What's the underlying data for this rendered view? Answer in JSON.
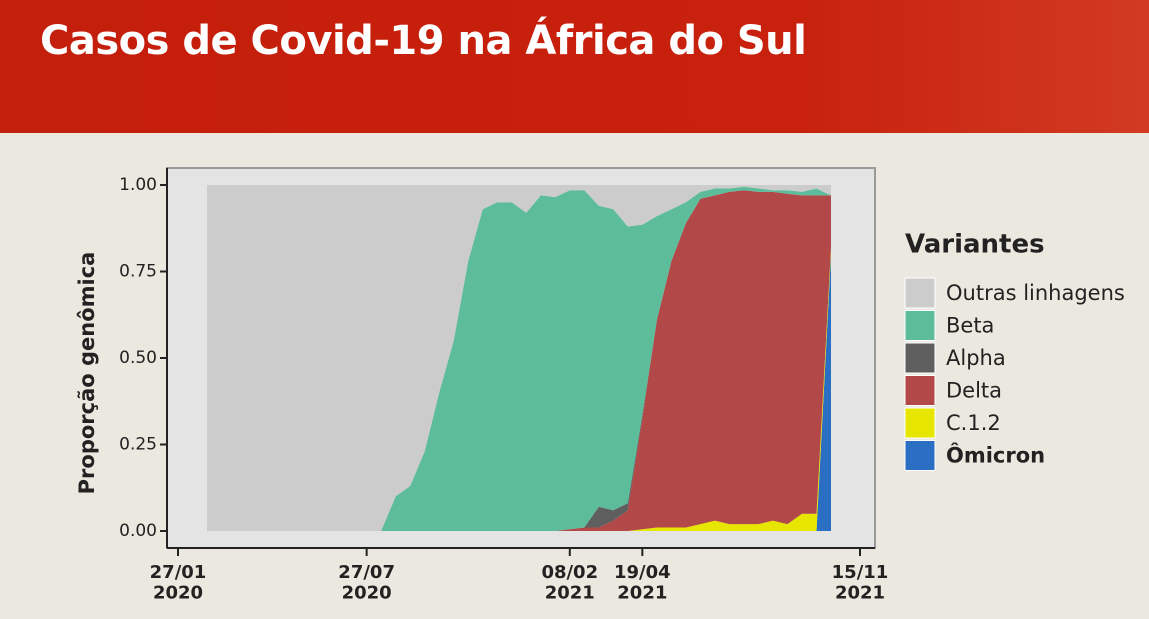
{
  "header": {
    "title": "Casos de Covid-19 na África do Sul"
  },
  "chart_data": {
    "type": "area",
    "stacked": true,
    "ylabel": "Proporção genômica",
    "legend_title": "Variantes",
    "x": [
      "2020-02-24",
      "2020-08-10",
      "2020-08-24",
      "2020-09-07",
      "2020-09-21",
      "2020-10-05",
      "2020-10-19",
      "2020-11-02",
      "2020-11-16",
      "2020-11-30",
      "2020-12-14",
      "2020-12-28",
      "2021-01-11",
      "2021-01-25",
      "2021-02-08",
      "2021-02-22",
      "2021-03-08",
      "2021-03-22",
      "2021-04-05",
      "2021-04-19",
      "2021-05-03",
      "2021-05-17",
      "2021-05-31",
      "2021-06-14",
      "2021-06-28",
      "2021-07-12",
      "2021-07-26",
      "2021-08-09",
      "2021-08-23",
      "2021-09-06",
      "2021-09-20",
      "2021-10-04",
      "2021-10-18"
    ],
    "xlim": [
      "2020-01-27",
      "2021-11-15"
    ],
    "xticks": [
      {
        "value": "2020-01-27",
        "label": "27/01\n2020"
      },
      {
        "value": "2020-07-27",
        "label": "27/07\n2020"
      },
      {
        "value": "2021-02-08",
        "label": "08/02\n2021"
      },
      {
        "value": "2021-04-19",
        "label": "19/04\n2021"
      },
      {
        "value": "2021-11-15",
        "label": "15/11\n2021"
      }
    ],
    "ylim": [
      -0.03,
      1.03
    ],
    "yticks": [
      {
        "value": 0,
        "label": "0.00"
      },
      {
        "value": 0.25,
        "label": "0.25"
      },
      {
        "value": 0.5,
        "label": "0.50"
      },
      {
        "value": 0.75,
        "label": "0.75"
      },
      {
        "value": 1,
        "label": "1.00"
      }
    ],
    "series": [
      {
        "name": "Ômicron",
        "color": "#2a6fc4",
        "values": [
          0,
          0,
          0,
          0,
          0,
          0,
          0,
          0,
          0,
          0,
          0,
          0,
          0,
          0,
          0,
          0,
          0,
          0,
          0,
          0,
          0,
          0,
          0,
          0,
          0,
          0,
          0,
          0,
          0,
          0,
          0,
          0,
          0.8
        ]
      },
      {
        "name": "C.1.2",
        "color": "#e6e600",
        "values": [
          0,
          0,
          0,
          0,
          0,
          0,
          0,
          0,
          0,
          0,
          0,
          0,
          0,
          0,
          0,
          0,
          0,
          0,
          0,
          0.005,
          0.01,
          0.01,
          0.01,
          0.02,
          0.03,
          0.02,
          0.02,
          0.02,
          0.03,
          0.02,
          0.05,
          0.05,
          0.02
        ]
      },
      {
        "name": "Delta",
        "color": "#b34848",
        "values": [
          0,
          0,
          0,
          0,
          0,
          0,
          0,
          0,
          0,
          0,
          0,
          0,
          0,
          0,
          0.005,
          0.01,
          0.01,
          0.03,
          0.06,
          0.32,
          0.6,
          0.77,
          0.88,
          0.94,
          0.94,
          0.96,
          0.965,
          0.96,
          0.95,
          0.955,
          0.92,
          0.92,
          0.15
        ]
      },
      {
        "name": "Alpha",
        "color": "#5f5f5f",
        "values": [
          0,
          0,
          0,
          0,
          0,
          0,
          0,
          0,
          0,
          0,
          0,
          0,
          0,
          0,
          0,
          0,
          0.06,
          0.03,
          0.02,
          0.01,
          0,
          0,
          0,
          0,
          0,
          0,
          0,
          0,
          0,
          0,
          0,
          0,
          0
        ]
      },
      {
        "name": "Beta",
        "color": "#5dbd9b",
        "values": [
          0,
          0,
          0.1,
          0.13,
          0.23,
          0.4,
          0.55,
          0.78,
          0.93,
          0.95,
          0.95,
          0.92,
          0.97,
          0.965,
          0.98,
          0.975,
          0.87,
          0.87,
          0.8,
          0.55,
          0.3,
          0.15,
          0.06,
          0.02,
          0.02,
          0.01,
          0.01,
          0.01,
          0.005,
          0.01,
          0.01,
          0.02,
          0
        ]
      },
      {
        "name": "Outras linhagens",
        "color": "#cccccc",
        "values": [
          1,
          1,
          0.9,
          0.87,
          0.77,
          0.6,
          0.45,
          0.22,
          0.07,
          0.05,
          0.05,
          0.08,
          0.03,
          0.035,
          0.015,
          0.015,
          0.06,
          0.07,
          0.12,
          0.115,
          0.09,
          0.07,
          0.05,
          0.02,
          0.01,
          0.01,
          0.005,
          0.01,
          0.015,
          0.015,
          0.02,
          0.01,
          0.03
        ]
      }
    ]
  }
}
